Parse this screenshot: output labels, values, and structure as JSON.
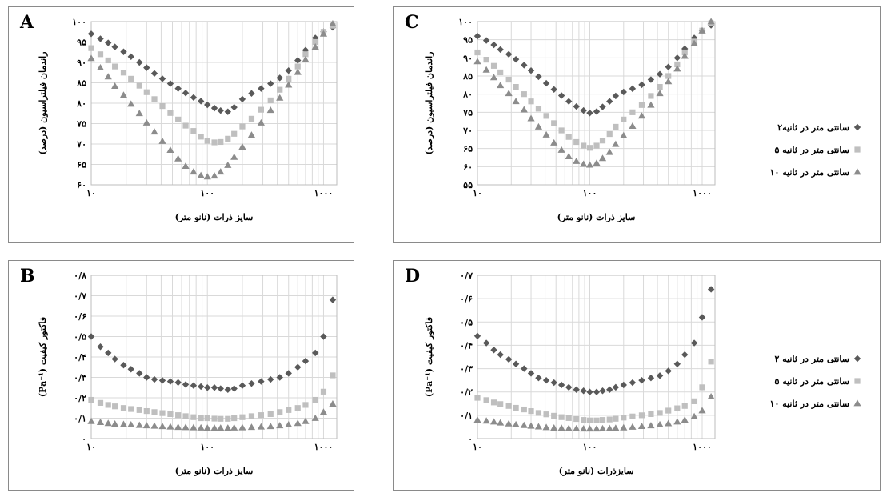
{
  "colors": {
    "series_2": "#595959",
    "series_5": "#bfbfbf",
    "series_10": "#8c8c8c",
    "grid": "#d9d9d9",
    "frame": "#8a8a8a"
  },
  "chart_data": [
    {
      "id": "A",
      "type": "scatter",
      "panel_label": "A",
      "xscale": "log",
      "xlim": [
        10,
        1300
      ],
      "xticks": [
        10,
        100,
        1000
      ],
      "xtick_labels": [
        "۱۰",
        "۱۰۰",
        "۱۰۰۰"
      ],
      "xlabel": "سایز ذرات (نانو متر)",
      "ylabel": "راندمان فیلتراسیون (درصد)",
      "ylim": [
        60,
        100
      ],
      "yticks": [
        60,
        65,
        70,
        75,
        80,
        85,
        90,
        95,
        100
      ],
      "ytick_labels": [
        "۶۰",
        "۶۵",
        "۷۰",
        "۷۵",
        "۸۰",
        "۸۵",
        "۹۰",
        "۹۵",
        "۱۰۰"
      ],
      "show_legend": false,
      "series": [
        {
          "marker": "diamond",
          "color": "#595959",
          "x": [
            10,
            12,
            14,
            16,
            19,
            22,
            26,
            30,
            35,
            41,
            48,
            56,
            65,
            76,
            88,
            100,
            115,
            130,
            150,
            170,
            200,
            240,
            290,
            350,
            420,
            500,
            600,
            700,
            850,
            1000,
            1200
          ],
          "y": [
            97,
            95.8,
            94.8,
            93.8,
            92.6,
            91.4,
            90,
            88.7,
            87.3,
            86,
            84.8,
            83.6,
            82.5,
            81.4,
            80.5,
            79.6,
            78.8,
            78.2,
            77.9,
            79,
            81,
            82.4,
            83.6,
            84.8,
            86.2,
            88,
            90.5,
            93,
            96,
            97.5,
            98.6
          ]
        },
        {
          "marker": "square",
          "color": "#bfbfbf",
          "x": [
            10,
            12,
            14,
            16,
            19,
            22,
            26,
            30,
            35,
            41,
            48,
            56,
            65,
            76,
            88,
            100,
            115,
            130,
            150,
            170,
            200,
            240,
            290,
            350,
            420,
            500,
            600,
            700,
            850,
            1000,
            1200
          ],
          "y": [
            93.5,
            92,
            90.5,
            89,
            87.5,
            86,
            84.3,
            82.7,
            81,
            79.3,
            77.6,
            76,
            74.5,
            73.2,
            71.8,
            70.8,
            70.4,
            70.5,
            71.3,
            72.5,
            74.3,
            76.2,
            78.4,
            80.7,
            83.3,
            86,
            89,
            92,
            95,
            97.5,
            99
          ]
        },
        {
          "marker": "triangle",
          "color": "#8c8c8c",
          "x": [
            10,
            12,
            14,
            16,
            19,
            22,
            26,
            30,
            35,
            41,
            48,
            56,
            65,
            76,
            88,
            100,
            115,
            130,
            150,
            170,
            200,
            240,
            290,
            350,
            420,
            500,
            600,
            700,
            850,
            1000,
            1200
          ],
          "y": [
            91,
            88.7,
            86.5,
            84.2,
            82,
            79.8,
            77.5,
            75.2,
            73,
            70.7,
            68.5,
            66.4,
            64.6,
            63.2,
            62.3,
            62,
            62.2,
            63.2,
            64.8,
            66.8,
            69.3,
            72.2,
            75.2,
            78.3,
            81.3,
            84.5,
            87.6,
            90.7,
            93.8,
            97,
            99.5
          ]
        }
      ]
    },
    {
      "id": "C",
      "type": "scatter",
      "panel_label": "C",
      "xscale": "log",
      "xlim": [
        10,
        1300
      ],
      "xticks": [
        10,
        100,
        1000
      ],
      "xtick_labels": [
        "۱۰",
        "۱۰۰",
        "۱۰۰۰"
      ],
      "xlabel": "سایز ذرات (نانو متر)",
      "ylabel": "راندمان فیلتراسیون (درصد)",
      "ylim": [
        55,
        100
      ],
      "yticks": [
        55,
        60,
        65,
        70,
        75,
        80,
        85,
        90,
        95,
        100
      ],
      "ytick_labels": [
        "۵۵",
        "۶۰",
        "۶۵",
        "۷۰",
        "۷۵",
        "۸۰",
        "۸۵",
        "۹۰",
        "۹۵",
        "۱۰۰"
      ],
      "show_legend": true,
      "legend": [
        "۲سانتی متر در ثانیه",
        "۵ سانتی متر در ثانیه",
        "۱۰ سانتی متر در ثانیه"
      ],
      "series": [
        {
          "marker": "diamond",
          "color": "#595959",
          "x": [
            10,
            12,
            14,
            16,
            19,
            22,
            26,
            30,
            35,
            41,
            48,
            56,
            65,
            76,
            88,
            100,
            115,
            130,
            150,
            170,
            200,
            240,
            290,
            350,
            420,
            500,
            600,
            700,
            850,
            1000,
            1200
          ],
          "y": [
            96,
            94.8,
            93.6,
            92.3,
            91,
            89.6,
            88,
            86.5,
            84.8,
            83,
            81.3,
            79.6,
            78,
            76.6,
            75.5,
            74.8,
            75.2,
            76.5,
            78,
            79.5,
            80.6,
            81.5,
            82.6,
            84,
            85.5,
            87.5,
            90,
            92.5,
            95.5,
            97.5,
            99
          ]
        },
        {
          "marker": "square",
          "color": "#bfbfbf",
          "x": [
            10,
            12,
            14,
            16,
            19,
            22,
            26,
            30,
            35,
            41,
            48,
            56,
            65,
            76,
            88,
            100,
            115,
            130,
            150,
            170,
            200,
            240,
            290,
            350,
            420,
            500,
            600,
            700,
            850,
            1000,
            1200
          ],
          "y": [
            91.5,
            89.5,
            87.8,
            86,
            84,
            82,
            80,
            78,
            76,
            74,
            72,
            70,
            68.2,
            66.8,
            65.8,
            65.2,
            65.8,
            67.2,
            69,
            71,
            73,
            75,
            77,
            79.5,
            82,
            85,
            88.2,
            91.5,
            94.5,
            97.5,
            99.5
          ]
        },
        {
          "marker": "triangle",
          "color": "#8c8c8c",
          "x": [
            10,
            12,
            14,
            16,
            19,
            22,
            26,
            30,
            35,
            41,
            48,
            56,
            65,
            76,
            88,
            100,
            115,
            130,
            150,
            170,
            200,
            240,
            290,
            350,
            420,
            500,
            600,
            700,
            850,
            1000,
            1200
          ],
          "y": [
            89,
            86.7,
            84.6,
            82.4,
            80.2,
            78,
            75.7,
            73.3,
            71,
            68.8,
            66.6,
            64.6,
            62.8,
            61.5,
            60.7,
            60.5,
            61,
            62.3,
            64,
            66.2,
            68.6,
            71.2,
            74,
            77,
            80.2,
            83.5,
            87,
            90.5,
            94,
            97.5,
            100
          ]
        }
      ]
    },
    {
      "id": "B",
      "type": "scatter",
      "panel_label": "B",
      "xscale": "log",
      "xlim": [
        10,
        1300
      ],
      "xticks": [
        10,
        100,
        1000
      ],
      "xtick_labels": [
        "۱۰",
        "۱۰۰",
        "۱۰۰۰"
      ],
      "xlabel": "سایز ذرات (نانو متر)",
      "ylabel": "(Pa⁻¹) فاکتور کیفیت",
      "ylim": [
        0,
        0.8
      ],
      "yticks": [
        0,
        0.1,
        0.2,
        0.3,
        0.4,
        0.5,
        0.6,
        0.7,
        0.8
      ],
      "ytick_labels": [
        "۰",
        "۰/۱",
        "۰/۲",
        "۰/۳",
        "۰/۴",
        "۰/۵",
        "۰/۶",
        "۰/۷",
        "۰/۸"
      ],
      "show_legend": false,
      "series": [
        {
          "marker": "diamond",
          "color": "#595959",
          "x": [
            10,
            12,
            14,
            16,
            19,
            22,
            26,
            30,
            35,
            41,
            48,
            56,
            65,
            76,
            88,
            100,
            115,
            130,
            150,
            170,
            200,
            240,
            290,
            350,
            420,
            500,
            600,
            700,
            850,
            1000,
            1200
          ],
          "y": [
            0.5,
            0.45,
            0.42,
            0.39,
            0.36,
            0.34,
            0.32,
            0.3,
            0.29,
            0.285,
            0.28,
            0.275,
            0.265,
            0.26,
            0.255,
            0.25,
            0.25,
            0.245,
            0.24,
            0.245,
            0.26,
            0.27,
            0.28,
            0.29,
            0.3,
            0.32,
            0.35,
            0.38,
            0.42,
            0.5,
            0.68
          ]
        },
        {
          "marker": "square",
          "color": "#bfbfbf",
          "x": [
            10,
            12,
            14,
            16,
            19,
            22,
            26,
            30,
            35,
            41,
            48,
            56,
            65,
            76,
            88,
            100,
            115,
            130,
            150,
            170,
            200,
            240,
            290,
            350,
            420,
            500,
            600,
            700,
            850,
            1000,
            1200
          ],
          "y": [
            0.19,
            0.175,
            0.165,
            0.158,
            0.15,
            0.145,
            0.14,
            0.135,
            0.13,
            0.125,
            0.12,
            0.115,
            0.11,
            0.105,
            0.1,
            0.1,
            0.098,
            0.097,
            0.097,
            0.1,
            0.105,
            0.11,
            0.115,
            0.12,
            0.13,
            0.14,
            0.15,
            0.165,
            0.19,
            0.23,
            0.31
          ]
        },
        {
          "marker": "triangle",
          "color": "#8c8c8c",
          "x": [
            10,
            12,
            14,
            16,
            19,
            22,
            26,
            30,
            35,
            41,
            48,
            56,
            65,
            76,
            88,
            100,
            115,
            130,
            150,
            170,
            200,
            240,
            290,
            350,
            420,
            500,
            600,
            700,
            850,
            1000,
            1200
          ],
          "y": [
            0.085,
            0.08,
            0.075,
            0.072,
            0.07,
            0.068,
            0.066,
            0.064,
            0.062,
            0.06,
            0.058,
            0.056,
            0.055,
            0.054,
            0.053,
            0.052,
            0.052,
            0.052,
            0.052,
            0.053,
            0.054,
            0.056,
            0.058,
            0.06,
            0.064,
            0.068,
            0.075,
            0.085,
            0.1,
            0.13,
            0.17
          ]
        }
      ]
    },
    {
      "id": "D",
      "type": "scatter",
      "panel_label": "D",
      "xscale": "log",
      "xlim": [
        10,
        1300
      ],
      "xticks": [
        10,
        100,
        1000
      ],
      "xtick_labels": [
        "۱۰",
        "۱۰۰",
        "۱۰۰۰"
      ],
      "xlabel": "سایزذرات (نانو متر)",
      "ylabel": "(Pa⁻¹) فاکتور کیفیت",
      "ylim": [
        0,
        0.7
      ],
      "yticks": [
        0,
        0.1,
        0.2,
        0.3,
        0.4,
        0.5,
        0.6,
        0.7
      ],
      "ytick_labels": [
        "۰",
        "۰/۱",
        "۰/۲",
        "۰/۳",
        "۰/۴",
        "۰/۵",
        "۰/۶",
        "۰/۷"
      ],
      "show_legend": true,
      "legend": [
        "۲ سانتی متر در ثانیه",
        "۵ سانتی متر در ثانیه",
        "۱۰ سانتی متر در ثانیه"
      ],
      "series": [
        {
          "marker": "diamond",
          "color": "#595959",
          "x": [
            10,
            12,
            14,
            16,
            19,
            22,
            26,
            30,
            35,
            41,
            48,
            56,
            65,
            76,
            88,
            100,
            115,
            130,
            150,
            170,
            200,
            240,
            290,
            350,
            420,
            500,
            600,
            700,
            850,
            1000,
            1200
          ],
          "y": [
            0.44,
            0.41,
            0.38,
            0.36,
            0.34,
            0.32,
            0.3,
            0.28,
            0.26,
            0.25,
            0.24,
            0.23,
            0.22,
            0.21,
            0.205,
            0.2,
            0.2,
            0.205,
            0.21,
            0.22,
            0.23,
            0.24,
            0.25,
            0.26,
            0.27,
            0.29,
            0.32,
            0.36,
            0.41,
            0.52,
            0.64
          ]
        },
        {
          "marker": "square",
          "color": "#bfbfbf",
          "x": [
            10,
            12,
            14,
            16,
            19,
            22,
            26,
            30,
            35,
            41,
            48,
            56,
            65,
            76,
            88,
            100,
            115,
            130,
            150,
            170,
            200,
            240,
            290,
            350,
            420,
            500,
            600,
            700,
            850,
            1000,
            1200
          ],
          "y": [
            0.175,
            0.165,
            0.155,
            0.148,
            0.14,
            0.132,
            0.125,
            0.118,
            0.11,
            0.104,
            0.098,
            0.092,
            0.088,
            0.084,
            0.08,
            0.078,
            0.078,
            0.08,
            0.082,
            0.085,
            0.09,
            0.095,
            0.1,
            0.105,
            0.11,
            0.12,
            0.13,
            0.14,
            0.16,
            0.22,
            0.33
          ]
        },
        {
          "marker": "triangle",
          "color": "#8c8c8c",
          "x": [
            10,
            12,
            14,
            16,
            19,
            22,
            26,
            30,
            35,
            41,
            48,
            56,
            65,
            76,
            88,
            100,
            115,
            130,
            150,
            170,
            200,
            240,
            290,
            350,
            420,
            500,
            600,
            700,
            850,
            1000,
            1200
          ],
          "y": [
            0.08,
            0.076,
            0.072,
            0.068,
            0.064,
            0.06,
            0.057,
            0.054,
            0.051,
            0.048,
            0.046,
            0.045,
            0.044,
            0.043,
            0.042,
            0.042,
            0.042,
            0.043,
            0.044,
            0.045,
            0.047,
            0.05,
            0.053,
            0.056,
            0.06,
            0.065,
            0.072,
            0.08,
            0.095,
            0.12,
            0.18
          ]
        }
      ]
    }
  ]
}
